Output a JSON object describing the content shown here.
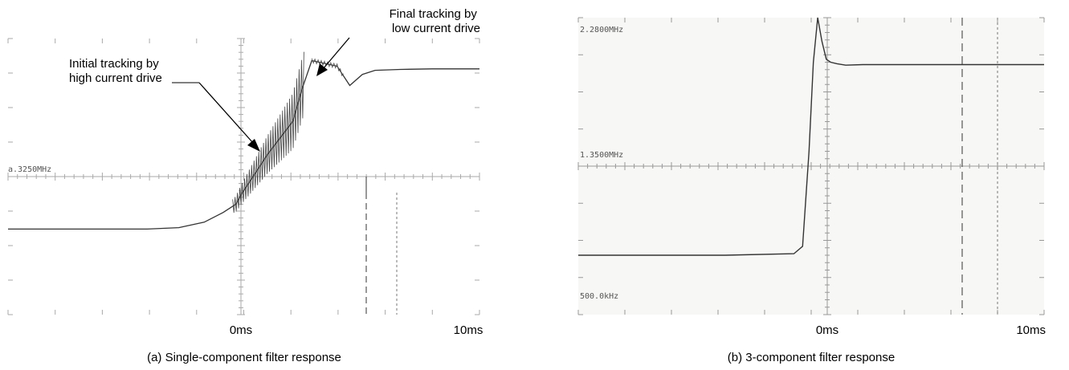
{
  "chart_data": [
    {
      "type": "line",
      "caption": "(a) Single-component filter response",
      "x_tick_labels": [
        "0ms",
        "10ms"
      ],
      "scope_readouts": [
        "a.3250MHz"
      ],
      "annotations": [
        "Initial tracking by\nhigh current drive",
        "Final tracking by\nlow current drive"
      ],
      "xlim": [
        -7.4,
        7.5
      ],
      "ylim": [
        -5,
        5
      ],
      "grid": true,
      "series": [
        {
          "x": [
            -7.4,
            -5,
            -3,
            -2,
            -1.2,
            -0.6,
            -0.2,
            0,
            0.4,
            0.8,
            1.2,
            1.6,
            1.9,
            2.2,
            2.6,
            3.0,
            3.4,
            3.8,
            4.2,
            5.0,
            6.0,
            7.5
          ],
          "y": [
            -1.9,
            -1.9,
            -1.9,
            -1.85,
            -1.65,
            -1.3,
            -1.0,
            -0.6,
            0.1,
            0.8,
            1.4,
            2.0,
            3.2,
            4.2,
            4.1,
            4.0,
            3.3,
            3.7,
            3.85,
            3.88,
            3.9,
            3.9
          ]
        }
      ]
    },
    {
      "type": "line",
      "caption": "(b) 3-component filter response",
      "x_tick_labels": [
        "0ms",
        "10ms"
      ],
      "scope_readouts": [
        "2.2800MHz",
        "1.3500MHz",
        "500.0kHz"
      ],
      "xlim": [
        -5.4,
        5.4
      ],
      "ylim": [
        -5,
        5
      ],
      "grid": true,
      "series": [
        {
          "x": [
            -5.4,
            -2,
            -0.4,
            -0.2,
            -0.05,
            0.05,
            0.15,
            0.25,
            0.35,
            0.45,
            0.6,
            0.8,
            1.2,
            2,
            3,
            4,
            5.4
          ],
          "y": [
            -3.0,
            -3.0,
            -2.95,
            -2.7,
            0.5,
            3.5,
            5.0,
            4.2,
            3.6,
            3.5,
            3.45,
            3.4,
            3.42,
            3.42,
            3.42,
            3.42,
            3.42
          ]
        }
      ]
    }
  ]
}
